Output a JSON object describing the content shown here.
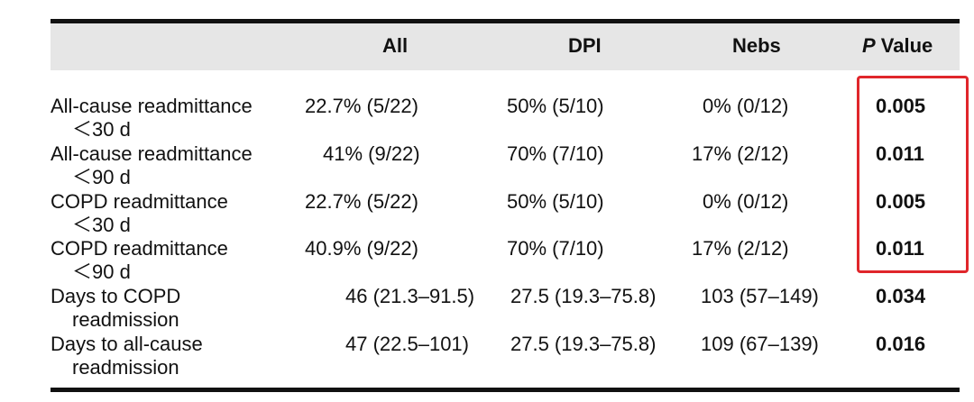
{
  "table": {
    "headers": {
      "all": "All",
      "dpi": "DPI",
      "nebs": "Nebs",
      "p_italic": "P",
      "p_rest": " Value"
    },
    "rows": [
      {
        "label_line1": "All-cause readmittance",
        "label_line2": "＜30 d",
        "all": "22.7% (5/22)",
        "dpi": "50% (5/10)",
        "nebs": "0% (0/12)",
        "p": "0.005"
      },
      {
        "label_line1": "All-cause readmittance",
        "label_line2": "＜90 d",
        "all": "41% (9/22)",
        "dpi": "70% (7/10)",
        "nebs": "17% (2/12)",
        "p": "0.011"
      },
      {
        "label_line1": "COPD readmittance",
        "label_line2": "＜30 d",
        "all": "22.7% (5/22)",
        "dpi": "50% (5/10)",
        "nebs": "0% (0/12)",
        "p": "0.005"
      },
      {
        "label_line1": "COPD readmittance",
        "label_line2": "＜90 d",
        "all": "40.9% (9/22)",
        "dpi": "70% (7/10)",
        "nebs": "17% (2/12)",
        "p": "0.011"
      },
      {
        "label_line1": "Days to COPD",
        "label_line2": "readmission",
        "all": "46 (21.3–91.5)",
        "dpi": "27.5 (19.3–75.8)",
        "nebs": "103 (57–149)",
        "p": "0.034"
      },
      {
        "label_line1": "Days to all-cause",
        "label_line2": "readmission",
        "all": "47 (22.5–101)",
        "dpi": "27.5 (19.3–75.8)",
        "nebs": "109 (67–139)",
        "p": "0.016"
      }
    ]
  },
  "colors": {
    "header_background": "#e6e6e6",
    "rule": "#111111",
    "highlight_box": "#e0262b"
  }
}
